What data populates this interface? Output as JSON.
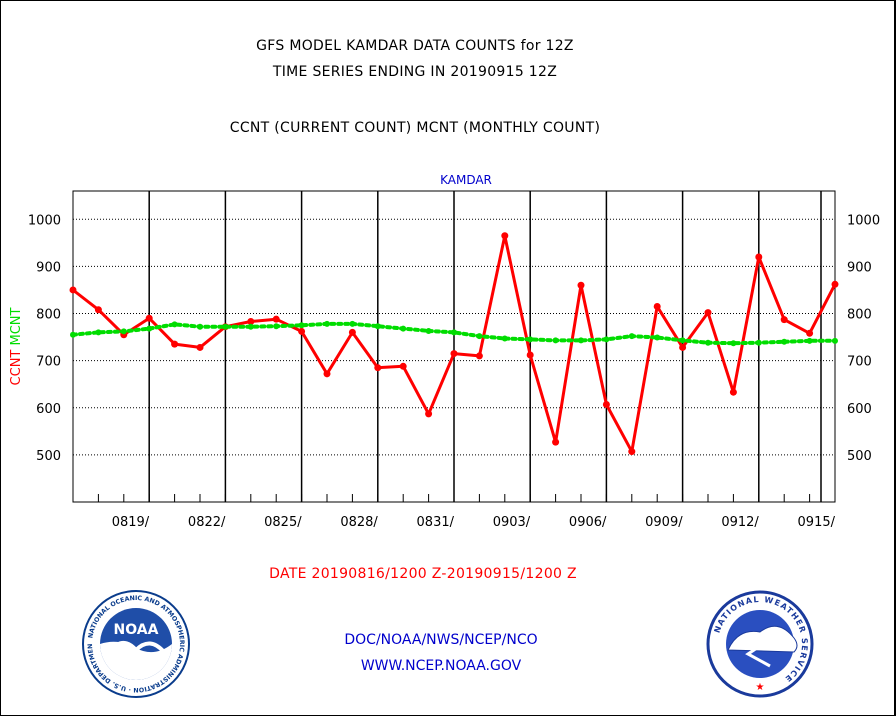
{
  "titles": {
    "line1": "GFS MODEL KAMDAR DATA COUNTS for 12Z",
    "line2": "TIME SERIES ENDING IN 20190915 12Z",
    "line3": "CCNT (CURRENT COUNT) MCNT (MONTHLY COUNT)"
  },
  "date_span": "DATE 20190816/1200 Z-20190915/1200 Z",
  "footer": {
    "line1": "DOC/NOAA/NWS/NCEP/NCO",
    "line2": "WWW.NCEP.NOAA.GOV"
  },
  "logos": {
    "noaa_text": "NOAA",
    "noaa_ring": "NATIONAL OCEANIC AND ATMOSPHERIC ADMINISTRATION · U.S. DEPARTMENT OF COMMERCE",
    "nws_ring": "NATIONAL WEATHER SERVICE"
  },
  "chart_data": {
    "type": "line",
    "title": "KAMDAR",
    "ylabel_parts": [
      "CCNT",
      "MCNT"
    ],
    "ylim": [
      400,
      1060
    ],
    "yticks": [
      500,
      600,
      700,
      800,
      900,
      1000
    ],
    "x_start": "20190816",
    "x_end": "20190915",
    "xtick_labels": [
      "0819/",
      "0822/",
      "0825/",
      "0828/",
      "0831/",
      "0903/",
      "0906/",
      "0909/",
      "0912/",
      "0915/"
    ],
    "xtick_days": [
      3,
      6,
      9,
      12,
      15,
      18,
      21,
      24,
      27,
      30
    ],
    "grid": true,
    "colors": {
      "ccnt": "#ff0000",
      "mcnt": "#00dd00",
      "axis": "#000000",
      "title": "#0000cc"
    },
    "series": [
      {
        "name": "CCNT",
        "style": "solid",
        "x": [
          0,
          1,
          2,
          3,
          4,
          5,
          6,
          7,
          8,
          9,
          10,
          11,
          12,
          13,
          14,
          15,
          16,
          17,
          18,
          19,
          20,
          21,
          22,
          23,
          24,
          25,
          26,
          27,
          28,
          29,
          30
        ],
        "values": [
          850,
          808,
          755,
          790,
          735,
          728,
          772,
          783,
          788,
          762,
          672,
          760,
          685,
          688,
          587,
          715,
          710,
          965,
          712,
          527,
          860,
          607,
          507,
          815,
          728,
          802,
          633,
          920,
          787,
          758,
          862
        ]
      },
      {
        "name": "MCNT",
        "style": "dotted",
        "x": [
          0,
          1,
          2,
          3,
          4,
          5,
          6,
          7,
          8,
          9,
          10,
          11,
          12,
          13,
          14,
          15,
          16,
          17,
          18,
          19,
          20,
          21,
          22,
          23,
          24,
          25,
          26,
          27,
          28,
          29,
          30
        ],
        "values": [
          755,
          760,
          762,
          768,
          777,
          772,
          772,
          772,
          773,
          775,
          778,
          778,
          773,
          768,
          763,
          760,
          752,
          747,
          745,
          743,
          743,
          745,
          752,
          749,
          743,
          738,
          737,
          738,
          740,
          742,
          742
        ]
      }
    ]
  }
}
